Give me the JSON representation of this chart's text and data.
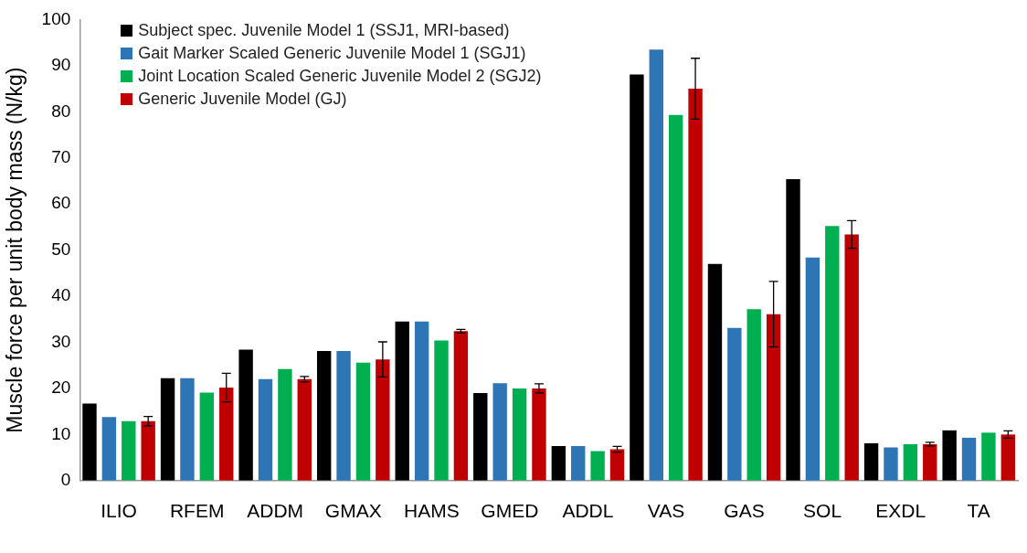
{
  "chart_data": {
    "type": "bar",
    "ylabel": "Muscle force per unit body mass (N/kg)",
    "categories": [
      "ILIO",
      "RFEM",
      "ADDM",
      "GMAX",
      "HAMS",
      "GMED",
      "ADDL",
      "VAS",
      "GAS",
      "SOL",
      "EXDL",
      "TA"
    ],
    "series": [
      {
        "name": "Subject spec. Juvenile Model 1 (SSJ1, MRI-based)",
        "color": "#000000",
        "values": [
          16.7,
          22.2,
          28.4,
          28.1,
          34.5,
          19.0,
          7.5,
          88.1,
          47.0,
          65.4,
          8.1,
          10.9
        ]
      },
      {
        "name": "Gait Marker Scaled Generic Juvenile Model 1 (SGJ1)",
        "color": "#2e75b6",
        "values": [
          13.8,
          22.2,
          22.0,
          28.1,
          34.5,
          21.1,
          7.5,
          93.5,
          33.1,
          48.4,
          7.2,
          9.3
        ]
      },
      {
        "name": "Joint Location Scaled Generic Juvenile Model 2 (SGJ2)",
        "color": "#00b050",
        "values": [
          12.9,
          19.1,
          24.2,
          25.6,
          30.4,
          20.0,
          6.4,
          79.3,
          37.2,
          55.2,
          7.9,
          10.4
        ]
      },
      {
        "name": "Generic Juvenile Model (GJ)",
        "color": "#c00000",
        "values": [
          12.9,
          20.2,
          22.0,
          26.3,
          32.4,
          20.0,
          6.8,
          85.0,
          36.1,
          53.4,
          7.9,
          10.0
        ],
        "errors": [
          1.0,
          3.1,
          0.6,
          3.8,
          0.4,
          1.0,
          0.6,
          6.6,
          7.1,
          3.0,
          0.4,
          0.8
        ]
      }
    ],
    "ylim": [
      0,
      100
    ],
    "yticks": [
      0,
      10,
      20,
      30,
      40,
      50,
      60,
      70,
      80,
      90,
      100
    ],
    "grid": false,
    "legend": "top left"
  }
}
